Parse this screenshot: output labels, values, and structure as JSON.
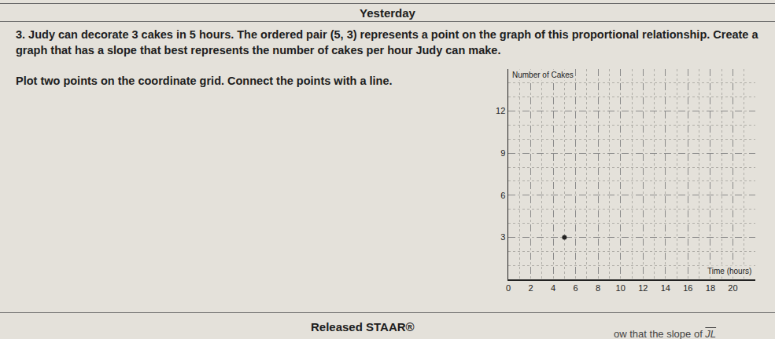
{
  "header": "Yesterday",
  "question": {
    "number": "3.",
    "text": "Judy can decorate 3 cakes in 5 hours. The ordered pair (5, 3) represents a point on the graph of this proportional relationship. Create a graph that has a slope that best represents the number of cakes per hour Judy can make."
  },
  "instruction": "Plot two points on the coordinate grid. Connect the points with a line.",
  "chart_data": {
    "type": "scatter",
    "x_label": "Time (hours)",
    "y_label": "Number of Cakes",
    "x": [
      5
    ],
    "values": [
      3
    ],
    "color": "#222222",
    "marker": "circle",
    "xlim": [
      0,
      22
    ],
    "ylim": [
      0,
      15
    ],
    "xticks": [
      0,
      2,
      4,
      6,
      8,
      10,
      12,
      14,
      16,
      18,
      20
    ],
    "yticks": [
      3,
      6,
      9,
      12
    ],
    "grid": true
  },
  "footer": "Released STAAR®",
  "fragment": {
    "text": "ow that the slope of",
    "overline": "JL"
  }
}
